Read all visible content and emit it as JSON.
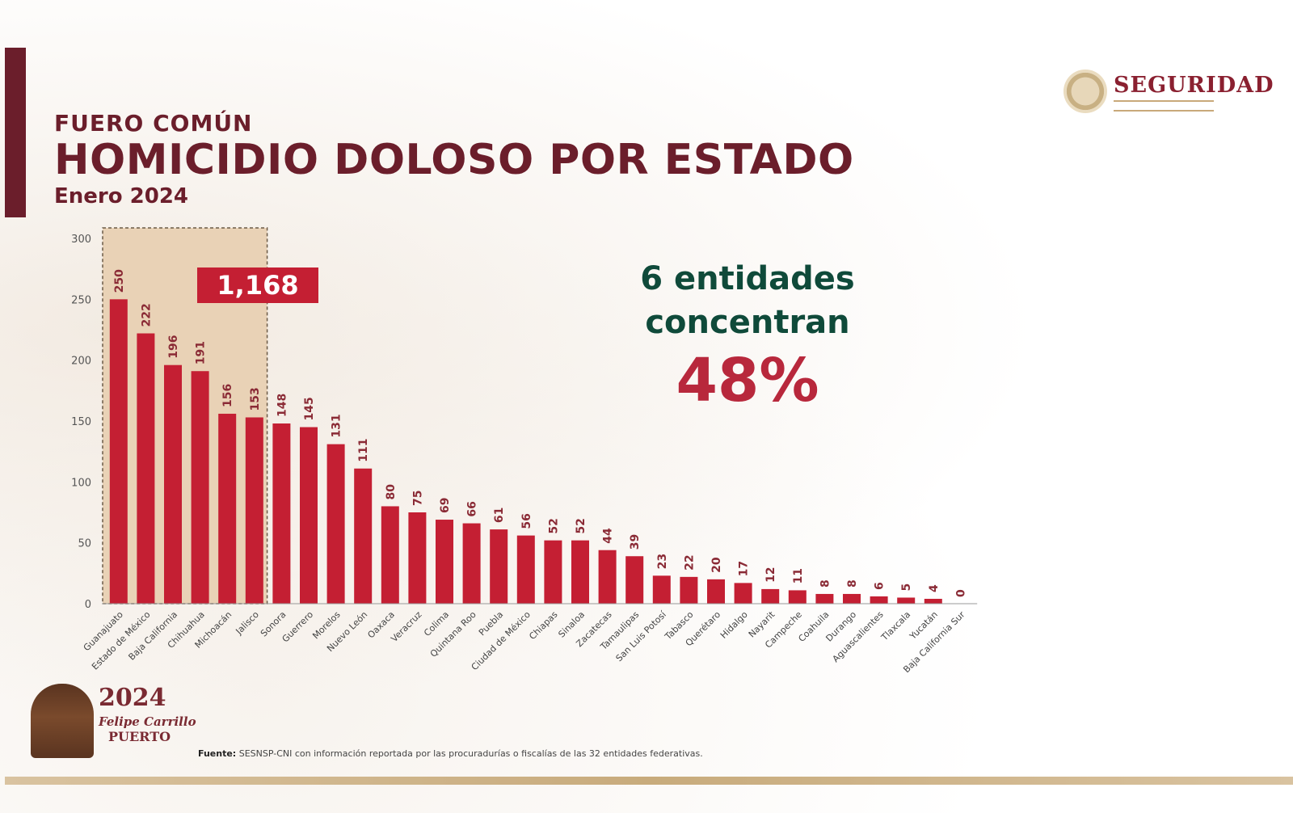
{
  "header": {
    "subtitle": "FUERO COMÚN",
    "title": "HOMICIDIO DOLOSO POR ESTADO",
    "period": "Enero 2024"
  },
  "logo": {
    "word": "SEGURIDAD"
  },
  "callout": {
    "line1": "6 entidades",
    "line2": "concentran",
    "percent": "48%"
  },
  "highlight": {
    "total_label": "1,168",
    "states_count": 6
  },
  "emblem": {
    "year": "2024",
    "name": "Felipe Carrillo",
    "name2": "PUERTO"
  },
  "source": {
    "label": "Fuente:",
    "text": "SESNSP-CNI con información reportada por las procuradurías o fiscalías de las 32 entidades federativas."
  },
  "colors": {
    "bar": "#c41f33",
    "title": "#6b1e2b",
    "callout_text": "#0f4a3a",
    "highlight_box": "#e9d2b6"
  },
  "chart_data": {
    "type": "bar",
    "categories": [
      "Guanajuato",
      "Estado de México",
      "Baja California",
      "Chihuahua",
      "Michoacán",
      "Jalisco",
      "Sonora",
      "Guerrero",
      "Morelos",
      "Nuevo León",
      "Oaxaca",
      "Veracruz",
      "Colima",
      "Quintana Roo",
      "Puebla",
      "Ciudad de México",
      "Chiapas",
      "Sinaloa",
      "Zacatecas",
      "Tamaulipas",
      "San Luis Potosí",
      "Tabasco",
      "Querétaro",
      "Hidalgo",
      "Nayarit",
      "Campeche",
      "Coahuila",
      "Durango",
      "Aguascalientes",
      "Tlaxcala",
      "Yucatán",
      "Baja California Sur"
    ],
    "values": [
      250,
      222,
      196,
      191,
      156,
      153,
      148,
      145,
      131,
      111,
      80,
      75,
      69,
      66,
      61,
      56,
      52,
      52,
      44,
      39,
      23,
      22,
      20,
      17,
      12,
      11,
      8,
      8,
      6,
      5,
      4,
      0
    ],
    "ylim": [
      0,
      300
    ],
    "yticks": [
      0,
      50,
      100,
      150,
      200,
      250,
      300
    ],
    "grid": false
  }
}
